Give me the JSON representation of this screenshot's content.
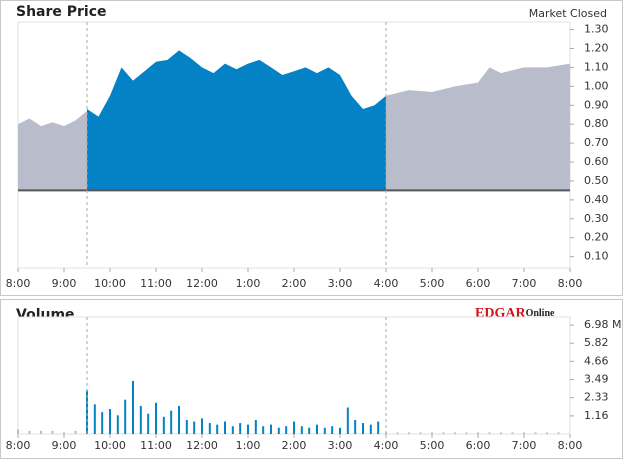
{
  "chart_data": [
    {
      "type": "area",
      "title": "Share Price",
      "status": "Market Closed",
      "xlim": [
        8,
        20
      ],
      "ylim": [
        0.04,
        1.34
      ],
      "reference_line": 0.45,
      "session_lines": [
        9.5,
        16
      ],
      "xticks": [
        {
          "value": 8,
          "label": "8:00"
        },
        {
          "value": 9,
          "label": "9:00"
        },
        {
          "value": 10,
          "label": "10:00"
        },
        {
          "value": 11,
          "label": "11:00"
        },
        {
          "value": 12,
          "label": "12:00"
        },
        {
          "value": 13,
          "label": "1:00"
        },
        {
          "value": 14,
          "label": "2:00"
        },
        {
          "value": 15,
          "label": "3:00"
        },
        {
          "value": 16,
          "label": "4:00"
        },
        {
          "value": 17,
          "label": "5:00"
        },
        {
          "value": 18,
          "label": "6:00"
        },
        {
          "value": 19,
          "label": "7:00"
        },
        {
          "value": 20,
          "label": "8:00"
        }
      ],
      "yticks": [
        {
          "value": 0.1,
          "label": "0.10"
        },
        {
          "value": 0.2,
          "label": "0.20"
        },
        {
          "value": 0.3,
          "label": "0.30"
        },
        {
          "value": 0.4,
          "label": "0.40"
        },
        {
          "value": 0.5,
          "label": "0.50"
        },
        {
          "value": 0.6,
          "label": "0.60"
        },
        {
          "value": 0.7,
          "label": "0.70"
        },
        {
          "value": 0.8,
          "label": "0.80"
        },
        {
          "value": 0.9,
          "label": "0.90"
        },
        {
          "value": 1.0,
          "label": "1.00"
        },
        {
          "value": 1.1,
          "label": "1.10"
        },
        {
          "value": 1.2,
          "label": "1.20"
        },
        {
          "value": 1.3,
          "label": "1.30"
        }
      ],
      "series": [
        {
          "color": "#b9bccb",
          "x": [
            8,
            8.25,
            8.5,
            8.75,
            9,
            9.25,
            9.5
          ],
          "values": [
            0.8,
            0.83,
            0.79,
            0.81,
            0.79,
            0.82,
            0.87
          ]
        },
        {
          "color": "#0581c6",
          "x": [
            9.5,
            9.75,
            10,
            10.25,
            10.5,
            10.75,
            11,
            11.25,
            11.5,
            11.75,
            12,
            12.25,
            12.5,
            12.75,
            13,
            13.25,
            13.5,
            13.75,
            14,
            14.25,
            14.5,
            14.75,
            15,
            15.25,
            15.5,
            15.75,
            16
          ],
          "values": [
            0.88,
            0.84,
            0.95,
            1.1,
            1.03,
            1.08,
            1.13,
            1.14,
            1.19,
            1.15,
            1.1,
            1.07,
            1.12,
            1.09,
            1.12,
            1.14,
            1.1,
            1.06,
            1.08,
            1.1,
            1.07,
            1.1,
            1.06,
            0.95,
            0.88,
            0.9,
            0.95
          ]
        },
        {
          "color": "#b9bccb",
          "x": [
            16,
            16.5,
            17,
            17.5,
            18,
            18.25,
            18.5,
            19,
            19.5,
            20
          ],
          "values": [
            0.95,
            0.98,
            0.97,
            1.0,
            1.02,
            1.1,
            1.07,
            1.1,
            1.1,
            1.12
          ]
        }
      ]
    },
    {
      "type": "bar",
      "title": "Volume",
      "logo": "EDGAR",
      "logo_sub": "Online",
      "xlim": [
        8,
        20
      ],
      "ylim": [
        0,
        7.5
      ],
      "session_lines": [
        9.5,
        16
      ],
      "xticks": [
        {
          "value": 8,
          "label": "8:00"
        },
        {
          "value": 9,
          "label": "9:00"
        },
        {
          "value": 10,
          "label": "10:00"
        },
        {
          "value": 11,
          "label": "11:00"
        },
        {
          "value": 12,
          "label": "12:00"
        },
        {
          "value": 13,
          "label": "1:00"
        },
        {
          "value": 14,
          "label": "2:00"
        },
        {
          "value": 15,
          "label": "3:00"
        },
        {
          "value": 16,
          "label": "4:00"
        },
        {
          "value": 17,
          "label": "5:00"
        },
        {
          "value": 18,
          "label": "6:00"
        },
        {
          "value": 19,
          "label": "7:00"
        },
        {
          "value": 20,
          "label": "8:00"
        }
      ],
      "yticks": [
        1.16,
        2.33,
        3.49,
        4.66,
        5.82,
        {
          "value": 6.98,
          "label": "6.98 M"
        }
      ],
      "series": [
        {
          "color": "#b9bccb",
          "x": [
            8,
            8.25,
            8.5,
            8.75,
            9,
            9.25
          ],
          "values": [
            0.3,
            0.2,
            0.2,
            0.2,
            0.1,
            0.2
          ]
        },
        {
          "color": "#0581c6",
          "x": [
            9.5,
            9.67,
            9.83,
            10,
            10.17,
            10.33,
            10.5,
            10.67,
            10.83,
            11,
            11.17,
            11.33,
            11.5,
            11.67,
            11.83,
            12,
            12.17,
            12.33,
            12.5,
            12.67,
            12.83,
            13,
            13.17,
            13.33,
            13.5,
            13.67,
            13.83,
            14,
            14.17,
            14.33,
            14.5,
            14.67,
            14.83,
            15,
            15.17,
            15.33,
            15.5,
            15.67,
            15.83
          ],
          "values": [
            2.8,
            1.9,
            1.4,
            1.6,
            1.2,
            2.2,
            3.4,
            1.8,
            1.3,
            2.0,
            1.1,
            1.5,
            1.8,
            0.9,
            0.8,
            1.0,
            0.7,
            0.6,
            0.8,
            0.5,
            0.7,
            0.6,
            0.9,
            0.5,
            0.6,
            0.4,
            0.5,
            0.8,
            0.5,
            0.4,
            0.6,
            0.4,
            0.5,
            0.4,
            1.7,
            0.9,
            0.7,
            0.6,
            0.8
          ]
        },
        {
          "color": "#b9bccb",
          "x": [
            16,
            16.25,
            16.5,
            16.75,
            17,
            17.25,
            17.5,
            17.75,
            18,
            18.25,
            18.5,
            18.75,
            19,
            19.25,
            19.5,
            19.75
          ],
          "values": [
            0.1,
            0.1,
            0.1,
            0.1,
            0.1,
            0.1,
            0.1,
            0.1,
            0.1,
            0.1,
            0.1,
            0.1,
            0.1,
            0.1,
            0.1,
            0.1
          ]
        }
      ]
    }
  ]
}
